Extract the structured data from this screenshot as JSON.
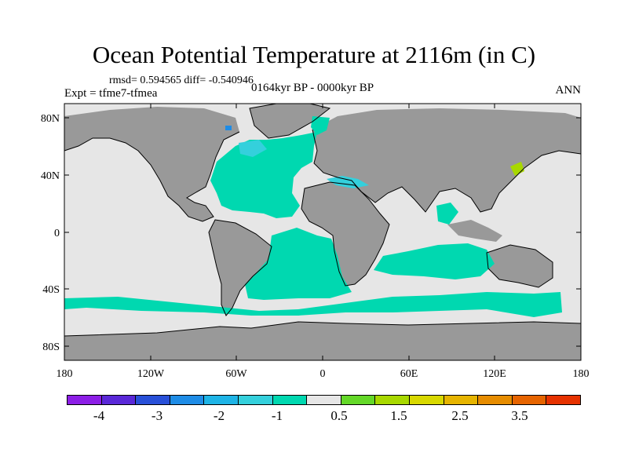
{
  "title": "Ocean Potential Temperature at 2116m (in C)",
  "stats": "rmsd= 0.594565 diff= -0.540946",
  "experiment": "Expt = tfme7-tfmea",
  "period": "0164kyr BP - 0000kyr BP",
  "season": "ANN",
  "colors": {
    "ocean_background": "#e6e6e6",
    "land": "#999999",
    "anomaly_minus_0_5": "#00d8b0",
    "anomaly_minus_1": "#34d0dc",
    "anomaly_minus_2": "#1e8ce6",
    "anomaly_plus_1": "#a8d800"
  },
  "lat_labels": [
    "80N",
    "40N",
    "0",
    "40S",
    "80S"
  ],
  "lon_labels": [
    "180",
    "120W",
    "60W",
    "0",
    "60E",
    "120E",
    "180"
  ],
  "colorbar": {
    "colors": [
      "#8c1ee6",
      "#5a28d8",
      "#2850d8",
      "#1e8ce6",
      "#1eb4e6",
      "#34d0dc",
      "#00d8b0",
      "#e6e6e6",
      "#64d828",
      "#a8d800",
      "#d8d800",
      "#e6b400",
      "#e68c00",
      "#e66400",
      "#e63200"
    ],
    "labels": [
      "-4",
      "-3",
      "-2",
      "-1",
      "0.5",
      "1.5",
      "2.5",
      "3.5"
    ]
  }
}
